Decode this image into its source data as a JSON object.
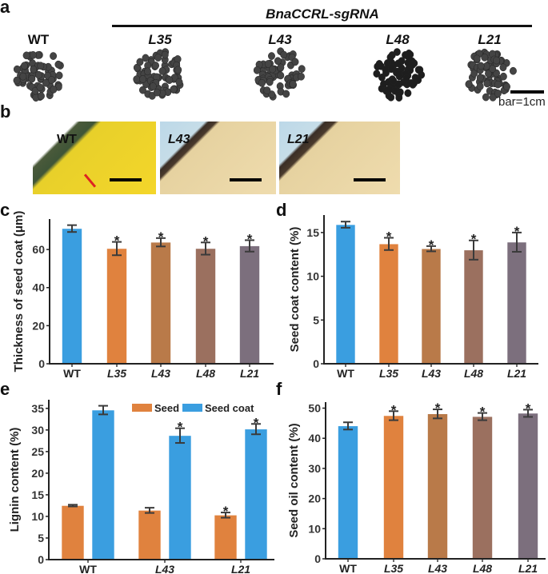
{
  "panel_a": {
    "label": "a",
    "group_title": "BnaCCRL-sgRNA",
    "genotypes": [
      "WT",
      "L35",
      "L43",
      "L48",
      "L21"
    ],
    "scale_bar": "bar=1cm"
  },
  "panel_b": {
    "label": "b",
    "images": [
      "WT",
      "L43",
      "L21"
    ]
  },
  "colors": {
    "WT": "#3a9ee0",
    "L35": "#e0823e",
    "L43": "#b97a49",
    "L48": "#9b705f",
    "L21": "#7c6f7d",
    "seed": "#e0823e",
    "seed_coat": "#3a9ee0"
  },
  "chart_data": [
    {
      "panel": "c",
      "type": "bar",
      "ylabel": "Thickness of seed coat (μm)",
      "categories": [
        "WT",
        "L35",
        "L43",
        "L48",
        "L21"
      ],
      "values": [
        71,
        60.5,
        63.8,
        60.5,
        61.9
      ],
      "errors": [
        1.8,
        3.5,
        2.2,
        3.2,
        3.0
      ],
      "significant": [
        false,
        true,
        true,
        true,
        true
      ],
      "yticks": [
        0,
        20,
        40,
        60
      ],
      "ylim": [
        0,
        76
      ]
    },
    {
      "panel": "d",
      "type": "bar",
      "ylabel": "Seed coat content (%)",
      "categories": [
        "WT",
        "L35",
        "L43",
        "L48",
        "L21"
      ],
      "values": [
        15.9,
        13.7,
        13.15,
        13.0,
        13.9
      ],
      "errors": [
        0.35,
        0.7,
        0.3,
        1.1,
        1.1
      ],
      "significant": [
        false,
        true,
        true,
        true,
        true
      ],
      "yticks": [
        0,
        5,
        10,
        15
      ],
      "ylim": [
        0,
        17
      ]
    },
    {
      "panel": "e",
      "type": "bar",
      "ylabel": "Lignin content (%)",
      "categories": [
        "WT",
        "L43",
        "L21"
      ],
      "series": [
        {
          "name": "Seed",
          "values": [
            12.5,
            11.4,
            10.3
          ],
          "errors": [
            0.2,
            0.6,
            0.6
          ],
          "significant": [
            false,
            false,
            true
          ]
        },
        {
          "name": "Seed coat",
          "values": [
            34.6,
            28.7,
            30.2
          ],
          "errors": [
            1.0,
            1.7,
            1.2
          ],
          "significant": [
            false,
            true,
            true
          ]
        }
      ],
      "yticks": [
        0,
        5,
        10,
        15,
        20,
        25,
        30,
        35
      ],
      "ylim": [
        0,
        37
      ],
      "legend": "top"
    },
    {
      "panel": "f",
      "type": "bar",
      "ylabel": "Seed oil content (%)",
      "categories": [
        "WT",
        "L35",
        "L43",
        "L48",
        "L21"
      ],
      "values": [
        44.1,
        47.5,
        48.1,
        47.2,
        48.3
      ],
      "errors": [
        1.2,
        1.5,
        1.5,
        1.2,
        1.2
      ],
      "significant": [
        false,
        true,
        true,
        true,
        true
      ],
      "yticks": [
        0,
        10,
        20,
        30,
        40,
        50
      ],
      "ylim": [
        0,
        52
      ]
    }
  ]
}
